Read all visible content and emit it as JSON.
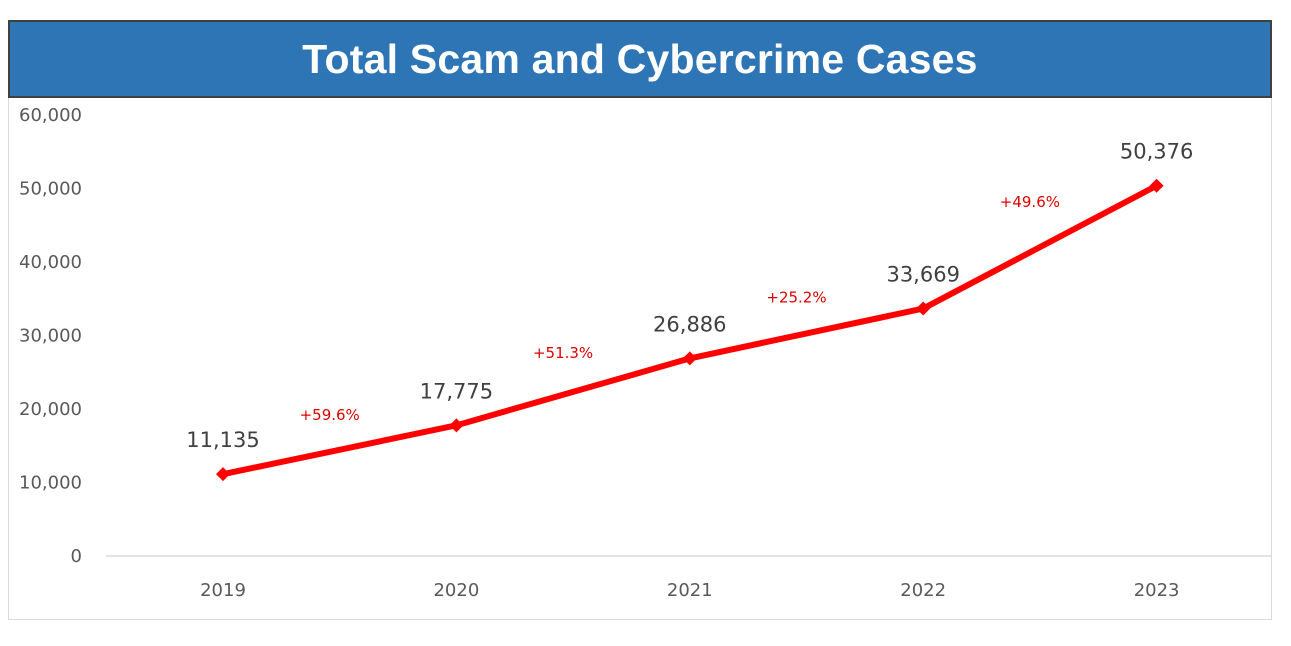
{
  "chart_data": {
    "type": "line",
    "title": "Total Scam and Cybercrime Cases",
    "xlabel": "",
    "ylabel": "",
    "categories": [
      "2019",
      "2020",
      "2021",
      "2022",
      "2023"
    ],
    "series": [
      {
        "values": [
          11135,
          17775,
          26886,
          33669,
          50376
        ]
      }
    ],
    "data_labels": [
      "11,135",
      "17,775",
      "26,886",
      "33,669",
      "50,376"
    ],
    "growth_labels": [
      "+59.6%",
      "+51.3%",
      "+25.2%",
      "+49.6%"
    ],
    "ylim": [
      0,
      60000
    ],
    "yticks": [
      0,
      10000,
      20000,
      30000,
      40000,
      50000,
      60000
    ],
    "ytick_labels": [
      "0",
      "10,000",
      "20,000",
      "30,000",
      "40,000",
      "50,000",
      "60,000"
    ],
    "grid": false,
    "legend": "none",
    "colors": {
      "line": "#ff0000",
      "growth_text": "#e00000",
      "title_bg": "#2e75b6",
      "title_text": "#ffffff"
    }
  }
}
